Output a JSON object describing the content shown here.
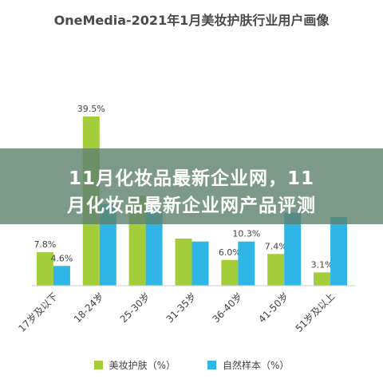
{
  "title": "OneMedia-2021年1月美妆护肤行业用户画像",
  "banner": {
    "line1": "11月化妆品最新企业网，11",
    "line2": "月化妆品最新企业网产品评测"
  },
  "colors": {
    "series1": "#a3cd3b",
    "series2": "#2fb6e6",
    "axis": "#cccccc",
    "label": "#444444"
  },
  "chart_data": {
    "type": "bar",
    "title": "OneMedia-2021年1月美妆护肤行业用户画像",
    "categories": [
      "17岁及以下",
      "18-24岁",
      "25-30岁",
      "31-35岁",
      "36-40岁",
      "41-50岁",
      "51岁及以上"
    ],
    "series": [
      {
        "name": "美妆护肤（%）",
        "values": [
          7.8,
          39.5,
          21.0,
          11.0,
          6.0,
          7.4,
          3.1
        ],
        "labels": [
          "7.8%",
          "39.5%",
          "",
          "",
          "6.0%",
          "7.4%",
          "3.1%"
        ]
      },
      {
        "name": "自然样本（%）",
        "values": [
          4.6,
          19.0,
          17.5,
          10.3,
          10.3,
          17.0,
          16.0
        ],
        "labels": [
          "4.6%",
          "",
          "",
          "",
          "10.3%",
          "",
          ""
        ]
      }
    ],
    "ylim": [
      0,
      42
    ],
    "grid": false,
    "legend": "bottom"
  }
}
